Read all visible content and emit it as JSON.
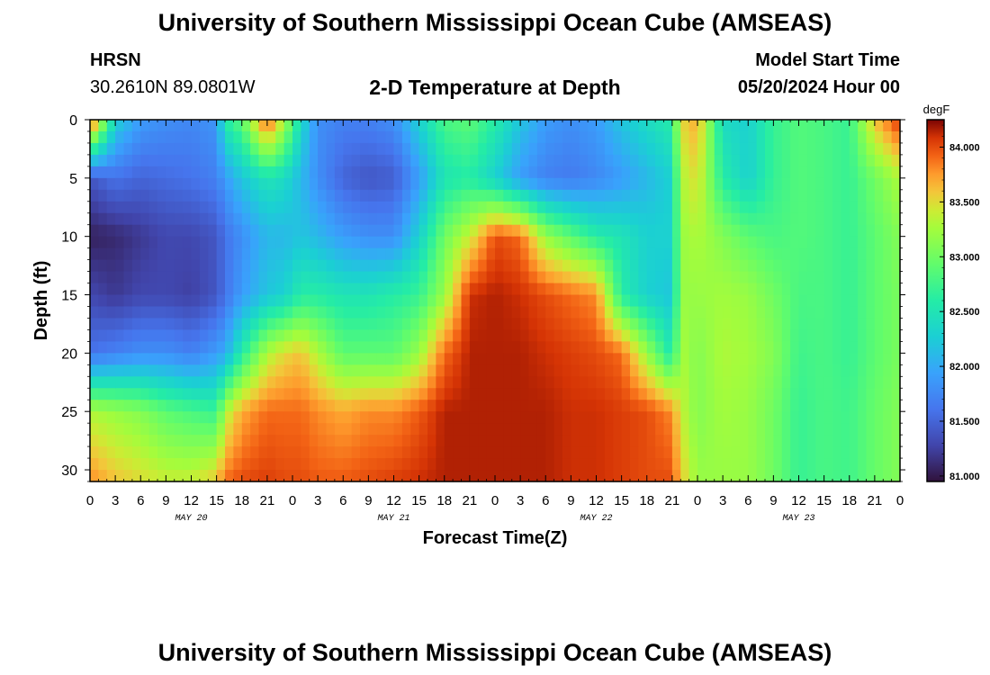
{
  "header": {
    "title": "University of Southern Mississippi Ocean Cube (AMSEAS)",
    "station": "HRSN",
    "coords": "30.2610N  89.0801W",
    "subtitle": "2-D Temperature at Depth",
    "model_start_label": "Model Start Time",
    "model_start_value": "05/20/2024 Hour 00"
  },
  "footer": {
    "title": "University of Southern Mississippi Ocean Cube (AMSEAS)"
  },
  "chart_data": {
    "type": "heatmap",
    "title": "2-D Temperature at Depth",
    "xlabel": "Forecast Time(Z)",
    "ylabel": "Depth (ft)",
    "x_tick_labels": [
      "0",
      "3",
      "6",
      "9",
      "12",
      "15",
      "18",
      "21",
      "0",
      "3",
      "6",
      "9",
      "12",
      "15",
      "18",
      "21",
      "0",
      "3",
      "6",
      "9",
      "12",
      "15",
      "18",
      "21",
      "0",
      "3",
      "6",
      "9",
      "12",
      "15",
      "18",
      "21",
      "0"
    ],
    "date_labels": [
      {
        "label": "MAY 20",
        "hour": 12
      },
      {
        "label": "MAY 21",
        "hour": 36
      },
      {
        "label": "MAY 22",
        "hour": 60
      },
      {
        "label": "MAY 23",
        "hour": 84
      }
    ],
    "xlim": [
      0,
      96
    ],
    "ylim": [
      31,
      0
    ],
    "y_ticks": [
      0,
      5,
      10,
      15,
      20,
      25,
      30
    ],
    "colorbar": {
      "unit": "degF",
      "range": [
        80.95,
        84.25
      ],
      "tick_values": [
        81.0,
        81.5,
        82.0,
        82.5,
        83.0,
        83.5,
        84.0
      ],
      "tick_labels": [
        "81.000",
        "81.500",
        "82.000",
        "82.500",
        "83.000",
        "83.500",
        "84.000"
      ]
    },
    "depths_ft": [
      0,
      5,
      10,
      15,
      20,
      25,
      31
    ],
    "profiles": [
      {
        "hour": 0,
        "temps": [
          84.1,
          81.4,
          81.05,
          81.3,
          81.6,
          83.3,
          83.8
        ]
      },
      {
        "hour": 3,
        "temps": [
          82.3,
          81.6,
          81.1,
          81.2,
          81.7,
          83.2,
          83.6
        ]
      },
      {
        "hour": 6,
        "temps": [
          81.9,
          81.5,
          81.2,
          81.3,
          81.8,
          83.1,
          83.5
        ]
      },
      {
        "hour": 9,
        "temps": [
          81.8,
          81.55,
          81.3,
          81.3,
          81.8,
          82.9,
          83.4
        ]
      },
      {
        "hour": 12,
        "temps": [
          81.75,
          81.6,
          81.3,
          81.25,
          81.7,
          82.8,
          83.4
        ]
      },
      {
        "hour": 15,
        "temps": [
          81.85,
          81.7,
          81.4,
          81.4,
          81.9,
          82.7,
          83.6
        ]
      },
      {
        "hour": 16,
        "temps": [
          82.6,
          81.9,
          81.6,
          81.6,
          82.0,
          83.3,
          83.9
        ]
      },
      {
        "hour": 18,
        "temps": [
          82.9,
          82.2,
          81.8,
          81.9,
          82.6,
          83.7,
          84.0
        ]
      },
      {
        "hour": 21,
        "temps": [
          84.0,
          82.5,
          82.1,
          82.2,
          83.3,
          83.9,
          84.05
        ]
      },
      {
        "hour": 23,
        "temps": [
          83.3,
          82.4,
          82.1,
          82.3,
          83.5,
          83.9,
          84.0
        ]
      },
      {
        "hour": 25,
        "temps": [
          82.4,
          82.1,
          82.2,
          82.6,
          83.6,
          83.9,
          84.0
        ]
      },
      {
        "hour": 27,
        "temps": [
          81.8,
          81.8,
          82.1,
          82.6,
          83.3,
          83.8,
          83.95
        ]
      },
      {
        "hour": 30,
        "temps": [
          81.7,
          81.5,
          81.9,
          82.5,
          82.9,
          83.7,
          83.95
        ]
      },
      {
        "hour": 33,
        "temps": [
          81.7,
          81.4,
          81.8,
          82.5,
          82.9,
          83.8,
          84.0
        ]
      },
      {
        "hour": 36,
        "temps": [
          81.8,
          81.45,
          81.8,
          82.6,
          82.9,
          83.8,
          84.05
        ]
      },
      {
        "hour": 39,
        "temps": [
          82.3,
          81.9,
          82.3,
          82.7,
          83.2,
          83.95,
          84.1
        ]
      },
      {
        "hour": 42,
        "temps": [
          82.8,
          82.5,
          83.0,
          83.2,
          83.9,
          84.15,
          84.15
        ]
      },
      {
        "hour": 45,
        "temps": [
          82.9,
          82.6,
          83.4,
          84.1,
          84.15,
          84.15,
          84.15
        ]
      },
      {
        "hour": 48,
        "temps": [
          82.6,
          82.3,
          84.0,
          84.15,
          84.15,
          84.15,
          84.15
        ]
      },
      {
        "hour": 51,
        "temps": [
          82.2,
          81.9,
          83.9,
          84.1,
          84.15,
          84.15,
          84.15
        ]
      },
      {
        "hour": 54,
        "temps": [
          81.9,
          81.7,
          83.2,
          84.0,
          84.1,
          84.15,
          84.15
        ]
      },
      {
        "hour": 57,
        "temps": [
          81.8,
          81.65,
          82.9,
          83.9,
          84.05,
          84.1,
          84.1
        ]
      },
      {
        "hour": 60,
        "temps": [
          81.9,
          81.75,
          82.6,
          83.8,
          84.0,
          84.1,
          84.1
        ]
      },
      {
        "hour": 63,
        "temps": [
          82.2,
          81.9,
          82.5,
          82.6,
          83.9,
          84.05,
          84.05
        ]
      },
      {
        "hour": 66,
        "temps": [
          82.4,
          82.1,
          82.3,
          82.3,
          83.2,
          84.0,
          84.0
        ]
      },
      {
        "hour": 69,
        "temps": [
          82.6,
          82.3,
          82.3,
          82.2,
          82.5,
          83.8,
          84.0
        ]
      },
      {
        "hour": 70,
        "temps": [
          83.5,
          83.3,
          83.2,
          83.2,
          83.3,
          83.4,
          83.6
        ]
      },
      {
        "hour": 72,
        "temps": [
          83.7,
          83.5,
          83.3,
          83.2,
          83.1,
          83.1,
          83.2
        ]
      },
      {
        "hour": 75,
        "temps": [
          82.4,
          82.6,
          83.1,
          83.25,
          83.3,
          83.25,
          83.2
        ]
      },
      {
        "hour": 78,
        "temps": [
          82.3,
          82.3,
          82.9,
          83.2,
          83.25,
          83.2,
          83.2
        ]
      },
      {
        "hour": 81,
        "temps": [
          82.7,
          82.7,
          82.8,
          83.0,
          83.1,
          83.0,
          83.0
        ]
      },
      {
        "hour": 84,
        "temps": [
          82.85,
          82.85,
          82.85,
          82.8,
          82.75,
          82.7,
          82.7
        ]
      },
      {
        "hour": 87,
        "temps": [
          82.8,
          82.8,
          82.8,
          82.8,
          82.8,
          82.8,
          82.8
        ]
      },
      {
        "hour": 90,
        "temps": [
          82.7,
          82.7,
          82.7,
          82.7,
          82.7,
          82.75,
          82.75
        ]
      },
      {
        "hour": 93,
        "temps": [
          83.6,
          83.0,
          82.9,
          82.9,
          82.9,
          82.95,
          82.95
        ]
      },
      {
        "hour": 96,
        "temps": [
          84.1,
          83.3,
          83.1,
          83.05,
          83.05,
          83.1,
          83.1
        ]
      }
    ]
  }
}
